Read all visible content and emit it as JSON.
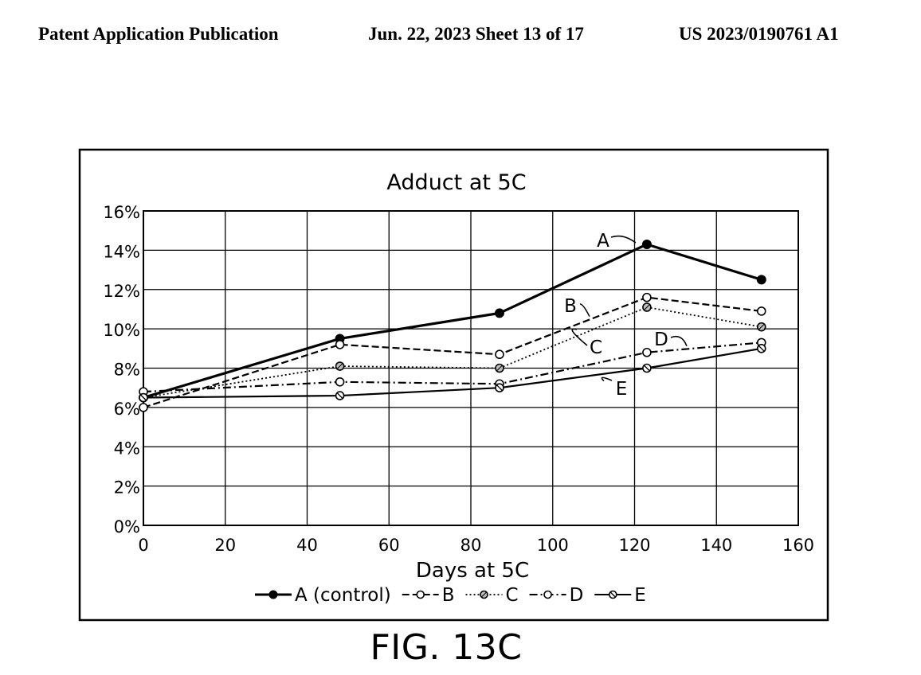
{
  "header": {
    "left": "Patent Application Publication",
    "middle": "Jun. 22, 2023  Sheet 13 of 17",
    "right": "US 2023/0190761 A1"
  },
  "figure_label": "FIG. 13C",
  "chart_data": {
    "type": "line",
    "title": "Adduct at 5C",
    "xlabel": "Days at 5C",
    "ylabel": "",
    "xlim": [
      0,
      160
    ],
    "ylim": [
      0,
      16
    ],
    "x_ticks": [
      "0",
      "20",
      "40",
      "60",
      "80",
      "100",
      "120",
      "140",
      "160"
    ],
    "y_ticks": [
      "0%",
      "2%",
      "4%",
      "6%",
      "8%",
      "10%",
      "12%",
      "14%",
      "16%"
    ],
    "grid": true,
    "legend_position": "bottom",
    "series": [
      {
        "name": "A (control)",
        "label": "A",
        "marker": "filled",
        "line": "solid-bold",
        "x": [
          0,
          48,
          87,
          123,
          151
        ],
        "values": [
          6.5,
          9.5,
          10.8,
          14.3,
          12.5
        ]
      },
      {
        "name": "B",
        "label": "B",
        "marker": "open",
        "line": "dashed",
        "x": [
          0,
          48,
          87,
          123,
          151
        ],
        "values": [
          6.0,
          9.2,
          8.7,
          11.6,
          10.9
        ]
      },
      {
        "name": "C",
        "label": "C",
        "marker": "hatched",
        "line": "dotted",
        "x": [
          0,
          48,
          87,
          123,
          151
        ],
        "values": [
          6.5,
          8.1,
          8.0,
          11.1,
          10.1
        ]
      },
      {
        "name": "D",
        "label": "D",
        "marker": "open",
        "line": "dash-dot",
        "x": [
          0,
          48,
          87,
          123,
          151
        ],
        "values": [
          6.8,
          7.3,
          7.2,
          8.8,
          9.3
        ]
      },
      {
        "name": "E",
        "label": "E",
        "marker": "slashed",
        "line": "solid",
        "x": [
          0,
          48,
          87,
          123,
          151
        ],
        "values": [
          6.5,
          6.6,
          7.0,
          8.0,
          9.0
        ]
      }
    ]
  }
}
